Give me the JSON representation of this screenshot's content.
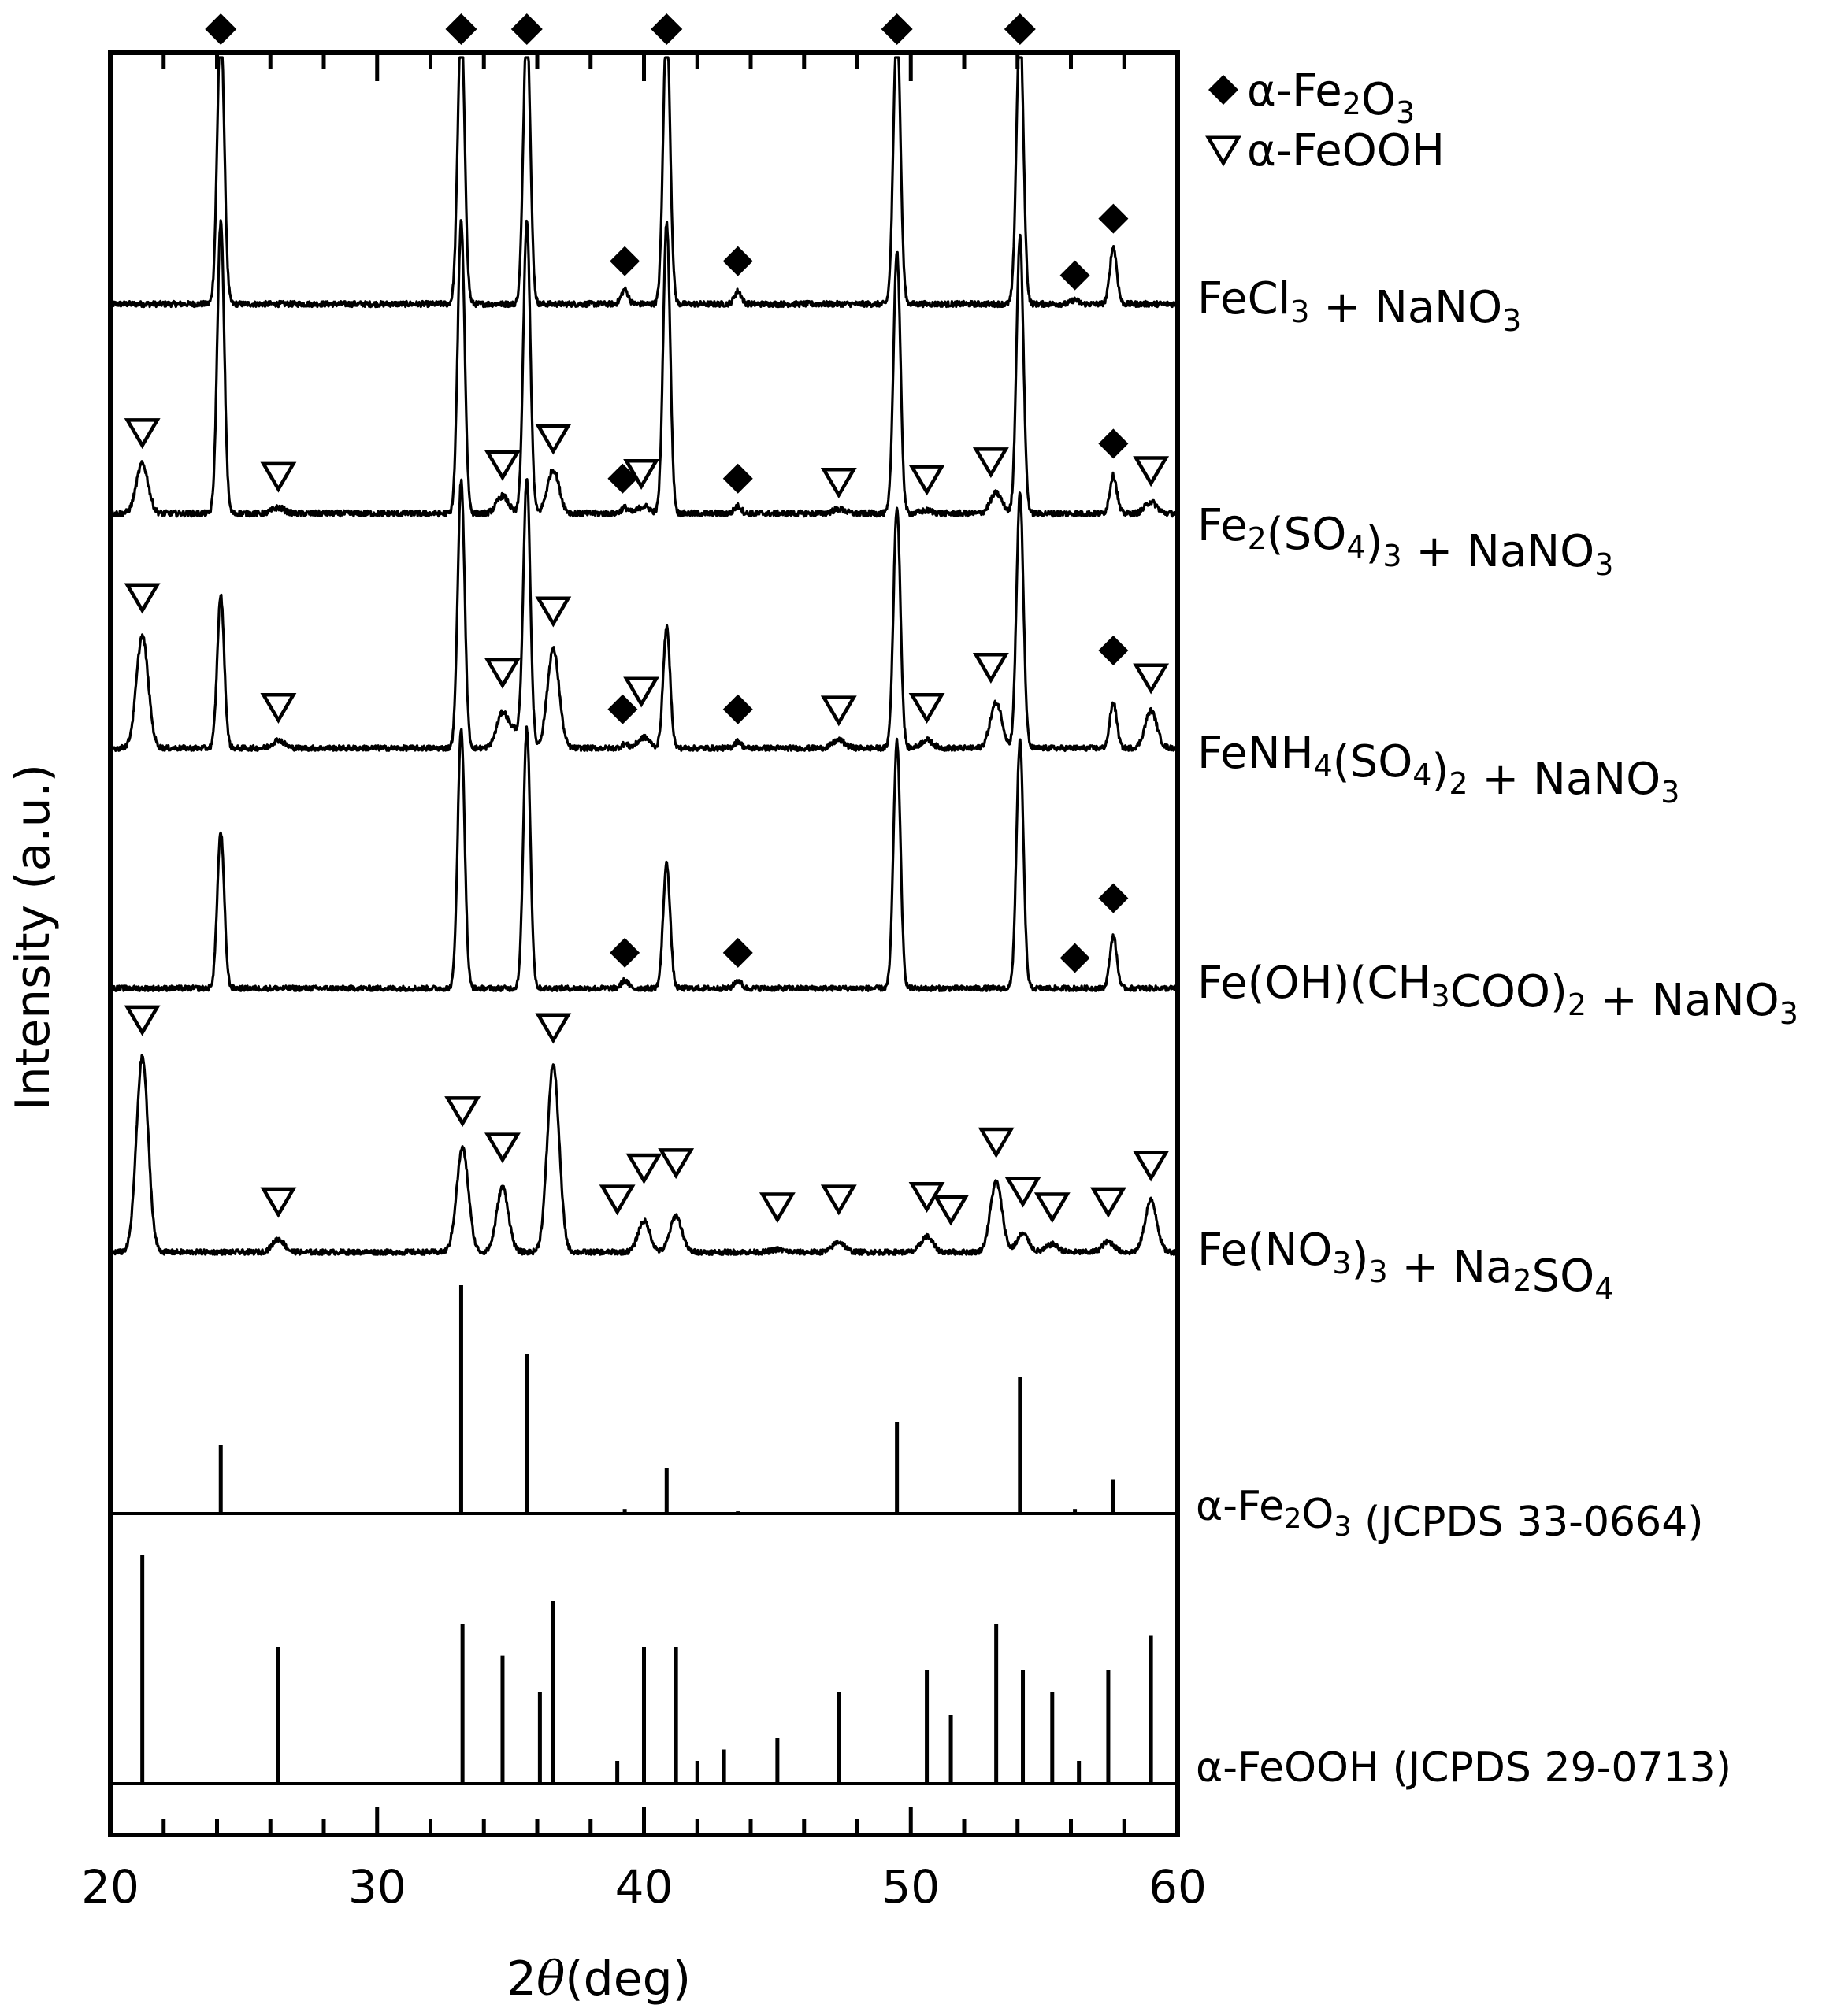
{
  "chart_data": {
    "type": "line",
    "title": "",
    "xlabel": {
      "prefix": "2",
      "theta": "θ",
      "suffix": "(deg)"
    },
    "ylabel": "Intensity (a.u.)",
    "xlim": [
      20,
      60
    ],
    "xticks": [
      20,
      30,
      40,
      50,
      60
    ],
    "legend": {
      "placement": "top-right",
      "entries": [
        {
          "marker": "diamond",
          "label": "α-Fe2O3",
          "parts": [
            [
              "α-Fe",
              ""
            ],
            [
              "2",
              "sub"
            ],
            [
              "O",
              ""
            ],
            [
              "3",
              "sub"
            ]
          ]
        },
        {
          "marker": "triangle-down",
          "label": "α-FeOOH",
          "parts": [
            [
              "α-FeOOH",
              ""
            ]
          ]
        }
      ]
    },
    "hematite_peaks": [
      24.14,
      33.15,
      35.61,
      39.28,
      40.85,
      43.52,
      49.48,
      54.09,
      56.15,
      57.59
    ],
    "goethite_peaks": [
      21.2,
      26.3,
      33.2,
      34.7,
      36.6,
      39.0,
      40.0,
      41.2,
      45.0,
      47.3,
      50.6,
      51.5,
      53.2,
      54.2,
      55.3,
      57.4,
      59.0
    ],
    "top_axis_markers": [
      24.14,
      33.15,
      35.61,
      40.85,
      49.48,
      54.09
    ],
    "series": [
      {
        "name": "FeCl3 + NaNO3",
        "label_parts": [
          [
            "FeCl",
            ""
          ],
          [
            "3",
            "sub"
          ],
          [
            " + NaNO",
            ""
          ],
          [
            "3",
            "sub"
          ]
        ],
        "hematite": [
          [
            24.14,
            1.0
          ],
          [
            33.15,
            1.0
          ],
          [
            35.61,
            1.0
          ],
          [
            39.28,
            0.05
          ],
          [
            40.85,
            1.0
          ],
          [
            43.52,
            0.045
          ],
          [
            49.48,
            1.0
          ],
          [
            54.09,
            1.0
          ],
          [
            56.15,
            0.015
          ],
          [
            57.59,
            0.2
          ]
        ],
        "goethite": [],
        "markers": {
          "diamond": [
            [
              39.28,
              0.09
            ],
            [
              43.52,
              0.09
            ],
            [
              56.15,
              0.04
            ],
            [
              57.59,
              0.24
            ]
          ],
          "triangle": []
        }
      },
      {
        "name": "Fe2(SO4)3 + NaNO3",
        "label_parts": [
          [
            "Fe",
            ""
          ],
          [
            "2",
            "sub"
          ],
          [
            "(SO",
            ""
          ],
          [
            "4",
            "sub"
          ],
          [
            ")",
            ""
          ],
          [
            "3",
            "sub"
          ],
          [
            " + NaNO",
            ""
          ],
          [
            "3",
            "sub"
          ]
        ],
        "hematite": [
          [
            24.14,
            1.0
          ],
          [
            33.15,
            1.0
          ],
          [
            35.61,
            1.0
          ],
          [
            39.28,
            0.02
          ],
          [
            40.85,
            1.0
          ],
          [
            43.52,
            0.025
          ],
          [
            49.48,
            0.9
          ],
          [
            54.09,
            0.95
          ],
          [
            57.59,
            0.13
          ]
        ],
        "goethite": [
          [
            21.2,
            0.17
          ],
          [
            26.3,
            0.02
          ],
          [
            34.7,
            0.06
          ],
          [
            36.6,
            0.15
          ],
          [
            40.0,
            0.025
          ],
          [
            47.3,
            0.015
          ],
          [
            50.6,
            0.01
          ],
          [
            53.2,
            0.07
          ],
          [
            59.0,
            0.04
          ]
        ],
        "markers": {
          "diamond": [
            [
              39.2,
              0.06
            ],
            [
              43.52,
              0.06
            ],
            [
              57.59,
              0.18
            ]
          ],
          "triangle": [
            [
              21.2,
              0.22
            ],
            [
              26.3,
              0.07
            ],
            [
              34.7,
              0.11
            ],
            [
              36.6,
              0.2
            ],
            [
              39.9,
              0.08
            ],
            [
              47.3,
              0.05
            ],
            [
              50.6,
              0.06
            ],
            [
              53.0,
              0.12
            ],
            [
              59.0,
              0.09
            ]
          ]
        }
      },
      {
        "name": "FeNH4(SO4)2 + NaNO3",
        "label_parts": [
          [
            "FeNH",
            ""
          ],
          [
            "4",
            "sub"
          ],
          [
            "(SO",
            ""
          ],
          [
            "4",
            "sub"
          ],
          [
            ")",
            ""
          ],
          [
            "2",
            "sub"
          ],
          [
            " + NaNO",
            ""
          ],
          [
            "3",
            "sub"
          ]
        ],
        "hematite": [
          [
            24.14,
            0.57
          ],
          [
            33.15,
            1.0
          ],
          [
            35.61,
            1.0
          ],
          [
            39.28,
            0.015
          ],
          [
            40.85,
            0.45
          ],
          [
            43.52,
            0.025
          ],
          [
            49.48,
            0.9
          ],
          [
            54.09,
            0.95
          ],
          [
            57.59,
            0.17
          ]
        ],
        "goethite": [
          [
            21.2,
            0.42
          ],
          [
            26.3,
            0.03
          ],
          [
            34.7,
            0.13
          ],
          [
            35.2,
            0.06
          ],
          [
            36.6,
            0.37
          ],
          [
            40.0,
            0.04
          ],
          [
            47.3,
            0.03
          ],
          [
            50.6,
            0.03
          ],
          [
            53.2,
            0.17
          ],
          [
            59.0,
            0.14
          ]
        ],
        "markers": {
          "diamond": [
            [
              39.2,
              0.08
            ],
            [
              43.52,
              0.08
            ],
            [
              57.59,
              0.3
            ]
          ],
          "triangle": [
            [
              21.2,
              0.5
            ],
            [
              26.3,
              0.09
            ],
            [
              34.7,
              0.22
            ],
            [
              36.6,
              0.45
            ],
            [
              39.9,
              0.15
            ],
            [
              47.3,
              0.08
            ],
            [
              50.6,
              0.09
            ],
            [
              53.0,
              0.24
            ],
            [
              59.0,
              0.2
            ]
          ]
        }
      },
      {
        "name": "Fe(OH)(CH3COO)2 + NaNO3",
        "label_parts": [
          [
            "Fe(OH)(CH",
            ""
          ],
          [
            "3",
            "sub"
          ],
          [
            "COO)",
            ""
          ],
          [
            "2",
            "sub"
          ],
          [
            " + NaNO",
            ""
          ],
          [
            "3",
            "sub"
          ]
        ],
        "hematite": [
          [
            24.14,
            0.6
          ],
          [
            33.15,
            1.0
          ],
          [
            35.61,
            1.0
          ],
          [
            39.28,
            0.03
          ],
          [
            40.85,
            0.48
          ],
          [
            43.52,
            0.03
          ],
          [
            49.48,
            0.95
          ],
          [
            54.09,
            0.95
          ],
          [
            57.59,
            0.2
          ]
        ],
        "goethite": [],
        "markers": {
          "diamond": [
            [
              39.28,
              0.07
            ],
            [
              43.52,
              0.07
            ],
            [
              56.15,
              0.05
            ],
            [
              57.59,
              0.28
            ]
          ],
          "triangle": []
        }
      },
      {
        "name": "Fe(NO3)3 + Na2SO4",
        "label_parts": [
          [
            "Fe(NO",
            ""
          ],
          [
            "3",
            "sub"
          ],
          [
            ")",
            ""
          ],
          [
            "3",
            "sub"
          ],
          [
            " + Na",
            ""
          ],
          [
            "2",
            "sub"
          ],
          [
            "SO",
            ""
          ],
          [
            "4",
            "sub"
          ]
        ],
        "hematite": [],
        "goethite": [
          [
            21.2,
            0.75
          ],
          [
            26.3,
            0.05
          ],
          [
            33.2,
            0.4
          ],
          [
            34.7,
            0.25
          ],
          [
            36.6,
            0.72
          ],
          [
            40.0,
            0.12
          ],
          [
            41.2,
            0.14
          ],
          [
            45.0,
            0.01
          ],
          [
            47.3,
            0.04
          ],
          [
            50.6,
            0.06
          ],
          [
            53.2,
            0.27
          ],
          [
            54.2,
            0.07
          ],
          [
            55.3,
            0.03
          ],
          [
            57.4,
            0.04
          ],
          [
            59.0,
            0.2
          ]
        ],
        "markers": {
          "diamond": [],
          "triangle": [
            [
              21.2,
              0.83
            ],
            [
              26.3,
              0.13
            ],
            [
              33.2,
              0.48
            ],
            [
              34.7,
              0.34
            ],
            [
              36.6,
              0.8
            ],
            [
              39.0,
              0.14
            ],
            [
              40.0,
              0.26
            ],
            [
              41.2,
              0.28
            ],
            [
              45.0,
              0.11
            ],
            [
              47.3,
              0.14
            ],
            [
              50.6,
              0.15
            ],
            [
              51.5,
              0.1
            ],
            [
              53.2,
              0.36
            ],
            [
              54.2,
              0.17
            ],
            [
              55.3,
              0.11
            ],
            [
              57.4,
              0.13
            ],
            [
              59.0,
              0.27
            ]
          ]
        }
      }
    ],
    "references": [
      {
        "name": "α-Fe2O3 (JCPDS 33-0664)",
        "label_parts": [
          [
            "α-Fe",
            ""
          ],
          [
            "2",
            "sub"
          ],
          [
            "O",
            ""
          ],
          [
            "3",
            "sub"
          ],
          [
            " (JCPDS 33-0664)",
            ""
          ]
        ],
        "x": [
          24.14,
          33.15,
          35.61,
          39.28,
          40.85,
          43.52,
          49.48,
          54.09,
          56.15,
          57.59
        ],
        "y": [
          30,
          100,
          70,
          2,
          20,
          1,
          40,
          60,
          2,
          15
        ]
      },
      {
        "name": "α-FeOOH (JCPDS 29-0713)",
        "label_parts": [
          [
            "α-FeOOH (JCPDS 29-0713)",
            ""
          ]
        ],
        "x": [
          21.2,
          26.3,
          33.2,
          34.7,
          36.1,
          36.6,
          39.0,
          40.0,
          41.2,
          42.0,
          43.0,
          45.0,
          47.3,
          50.6,
          51.5,
          53.2,
          54.2,
          55.3,
          56.3,
          57.4,
          59.0
        ],
        "y": [
          100,
          60,
          70,
          56,
          40,
          80,
          10,
          60,
          60,
          10,
          15,
          20,
          40,
          50,
          30,
          70,
          50,
          40,
          10,
          50,
          65
        ]
      }
    ]
  }
}
